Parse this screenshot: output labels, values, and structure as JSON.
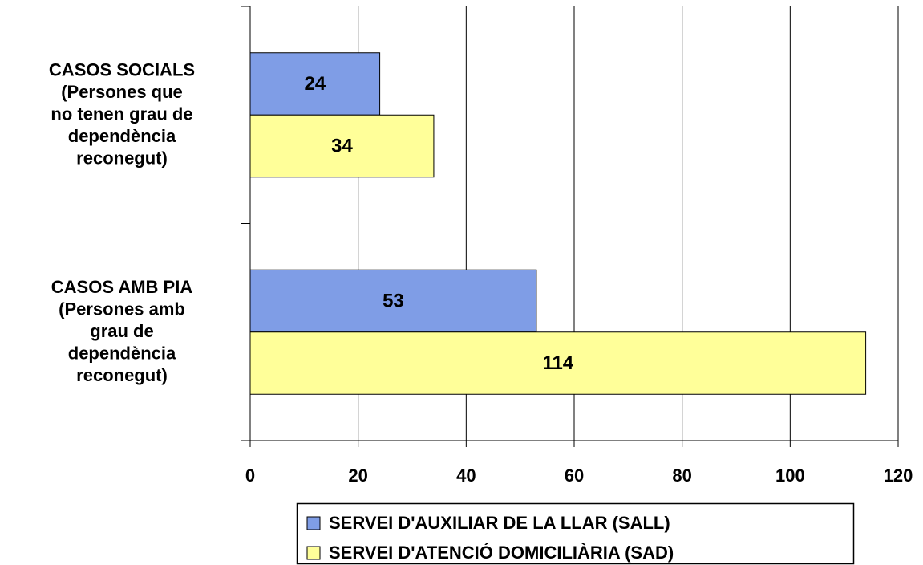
{
  "chart_data": {
    "type": "hbar",
    "categories": [
      "CASOS SOCIALS\n(Persones que\nno tenen grau de\ndependència\nreconegut)",
      "CASOS AMB PIA\n(Persones amb\ngrau de\ndependència\nreconegut)"
    ],
    "series": [
      {
        "name": "SERVEI D'AUXILIAR DE LA LLAR (SALL)",
        "color": "#7f9de6",
        "values": [
          24,
          53
        ]
      },
      {
        "name": "SERVEI D'ATENCIÓ DOMICILIÀRIA (SAD)",
        "color": "#ffff99",
        "values": [
          34,
          114
        ]
      }
    ],
    "xlim": [
      0,
      120
    ],
    "xticks": [
      0,
      20,
      40,
      60,
      80,
      100,
      120
    ],
    "grid": true,
    "legend": "bottom"
  }
}
